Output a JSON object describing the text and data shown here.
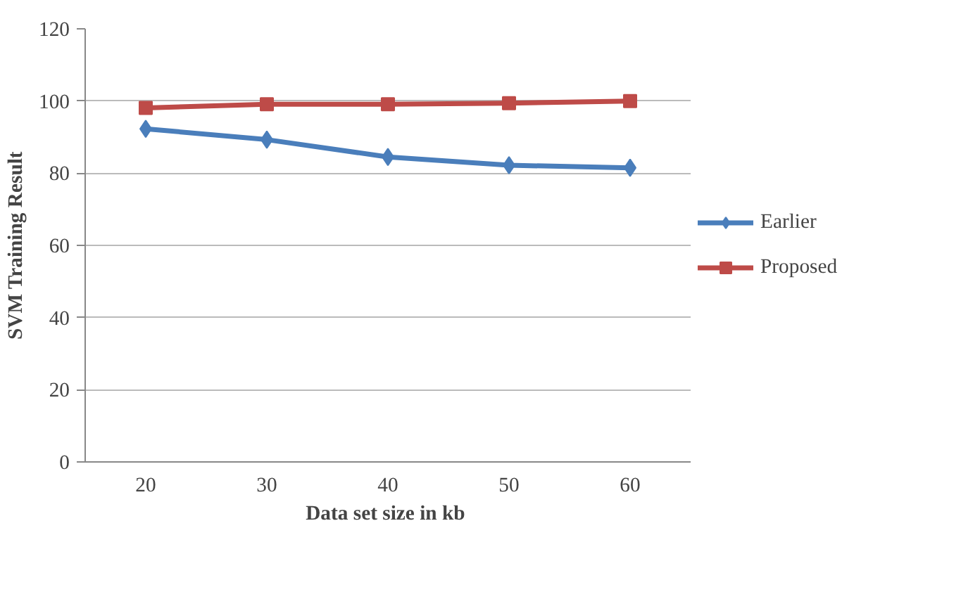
{
  "chart_data": {
    "type": "line",
    "xlabel": "Data set size in  kb",
    "ylabel": "SVM Training Result",
    "categories": [
      "20",
      "30",
      "40",
      "50",
      "60"
    ],
    "series": [
      {
        "name": "Earlier",
        "color": "#4a7ebb",
        "marker": "diamond",
        "values": [
          92.3,
          89.3,
          84.5,
          82.2,
          81.5
        ]
      },
      {
        "name": "Proposed",
        "color": "#be4b48",
        "marker": "square",
        "values": [
          98.1,
          99.1,
          99.1,
          99.4,
          100
        ]
      }
    ],
    "ylim": [
      0,
      120
    ],
    "yticks": [
      0,
      20,
      40,
      60,
      80,
      100,
      120
    ],
    "grid": "y",
    "legend": "right",
    "line_style": "solid"
  }
}
